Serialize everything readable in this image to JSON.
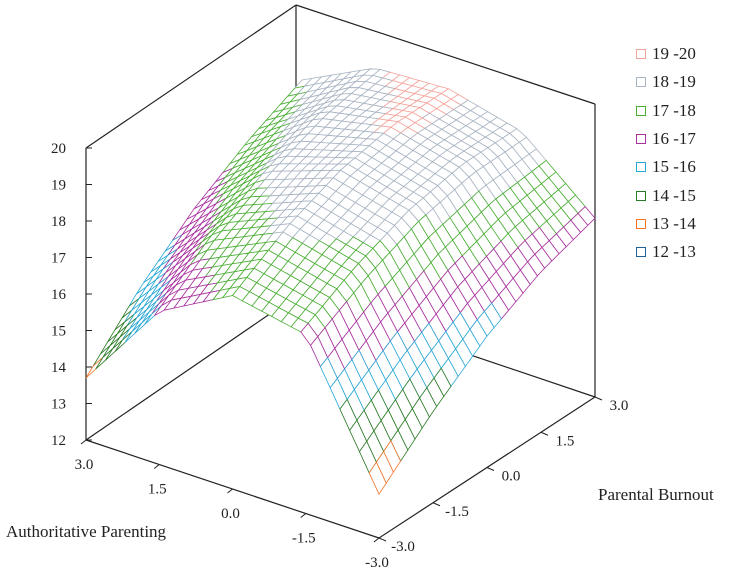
{
  "chart_data": {
    "type": "surface3d",
    "title": "",
    "x_axis": {
      "label": "Authoritative Parenting",
      "range": [
        -3.0,
        3.0
      ],
      "ticks": [
        "3.0",
        "1.5",
        "0.0",
        "-1.5",
        "-3.0"
      ]
    },
    "y_axis": {
      "label": "Parental Burnout",
      "range": [
        -3.0,
        3.0
      ],
      "ticks": [
        "3.0",
        "1.5",
        "0.0",
        "-1.5",
        "-3.0"
      ]
    },
    "z_axis": {
      "label": "",
      "range": [
        12,
        20
      ],
      "ticks": [
        "20",
        "19",
        "18",
        "17",
        "16",
        "15",
        "14",
        "13",
        "12"
      ]
    },
    "surface_samples": {
      "description_grid": "rows = Authoritative Parenting (3.0 to -3.0), cols = Parental Burnout (-3.0 to 3.0)",
      "ap_values": [
        3.0,
        1.5,
        0.0,
        -1.5,
        -3.0
      ],
      "pb_values": [
        -3.0,
        -1.5,
        0.0,
        1.5,
        3.0
      ],
      "z": [
        [
          13.7,
          15.2,
          16.4,
          17.3,
          18.0
        ],
        [
          16.2,
          17.3,
          18.1,
          18.7,
          19.0
        ],
        [
          17.3,
          18.2,
          18.8,
          19.1,
          19.1
        ],
        [
          16.9,
          17.7,
          18.3,
          18.6,
          18.6
        ],
        [
          13.2,
          14.5,
          15.6,
          16.4,
          16.9
        ]
      ]
    },
    "legend": [
      {
        "label": "19 -20",
        "color": "#f4a39a"
      },
      {
        "label": "18 -19",
        "color": "#a8b4c2"
      },
      {
        "label": "17 -18",
        "color": "#4aae34"
      },
      {
        "label": "16 -17",
        "color": "#a8309f"
      },
      {
        "label": "15 -16",
        "color": "#29a8d6"
      },
      {
        "label": "14 -15",
        "color": "#2a7a26"
      },
      {
        "label": "13 -14",
        "color": "#f0742a"
      },
      {
        "label": "12 -13",
        "color": "#1f5f9a"
      }
    ]
  }
}
